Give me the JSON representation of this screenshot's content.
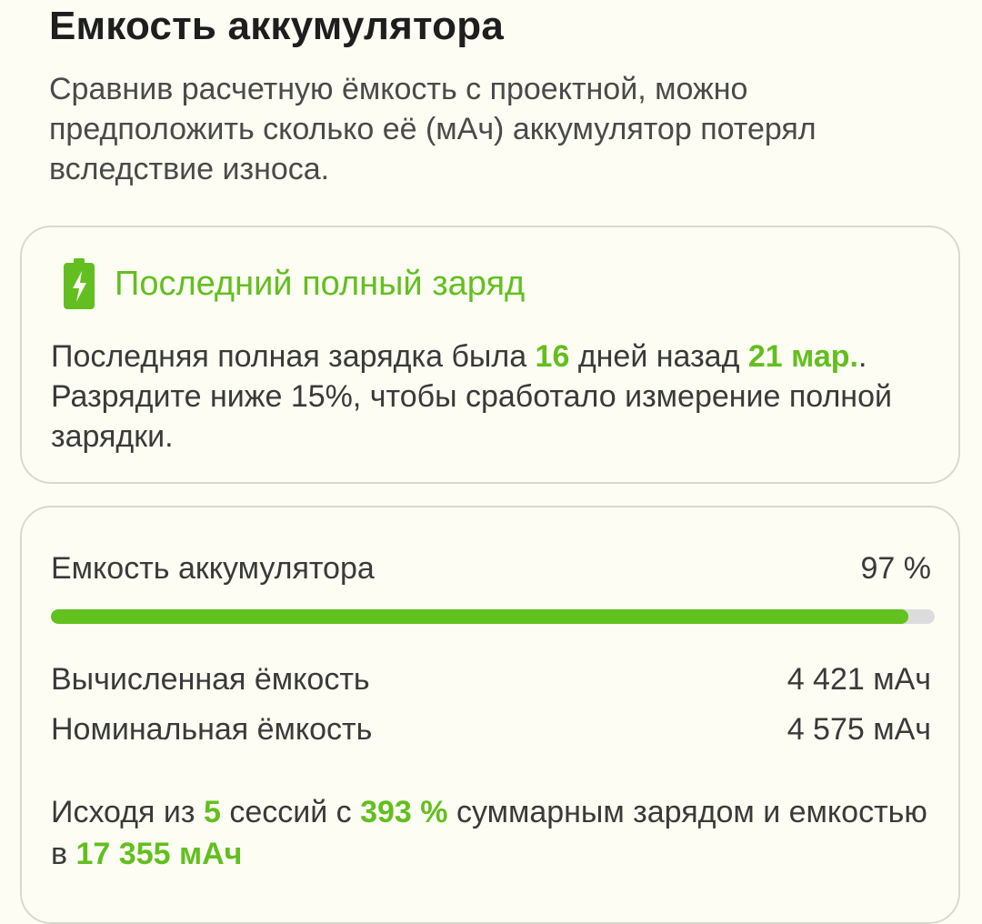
{
  "header": {
    "title": "Емкость аккумулятора",
    "description": "Сравнив расчетную ёмкость с проектной, можно предположить сколько её (мАч) аккумулятор потерял вследствие износа."
  },
  "last_charge_card": {
    "icon": "battery-charging-icon",
    "title": "Последний полный заряд",
    "text_1": "Последняя полная зарядка была ",
    "days": "16",
    "text_2": " дней назад ",
    "date": "21 мар.",
    "text_3": ". Разрядите ниже 15%, чтобы сработало измерение полной зарядки."
  },
  "capacity_card": {
    "label": "Емкость аккумулятора",
    "percent_text": "97 %",
    "percent_value": 97,
    "calculated_label": "Вычисленная ёмкость",
    "calculated_value": "4 421 мАч",
    "nominal_label": "Номинальная ёмкость",
    "nominal_value": "4 575 мАч",
    "summary_1": "Исходя из ",
    "sessions": "5",
    "summary_2": " сессий с ",
    "total_charge": "393 %",
    "summary_3": " суммарным зарядом и емкостью в ",
    "total_capacity": "17 355 мАч"
  },
  "colors": {
    "accent": "#63bf1f",
    "background": "#fdfdf4",
    "track": "#dcdcdc"
  }
}
